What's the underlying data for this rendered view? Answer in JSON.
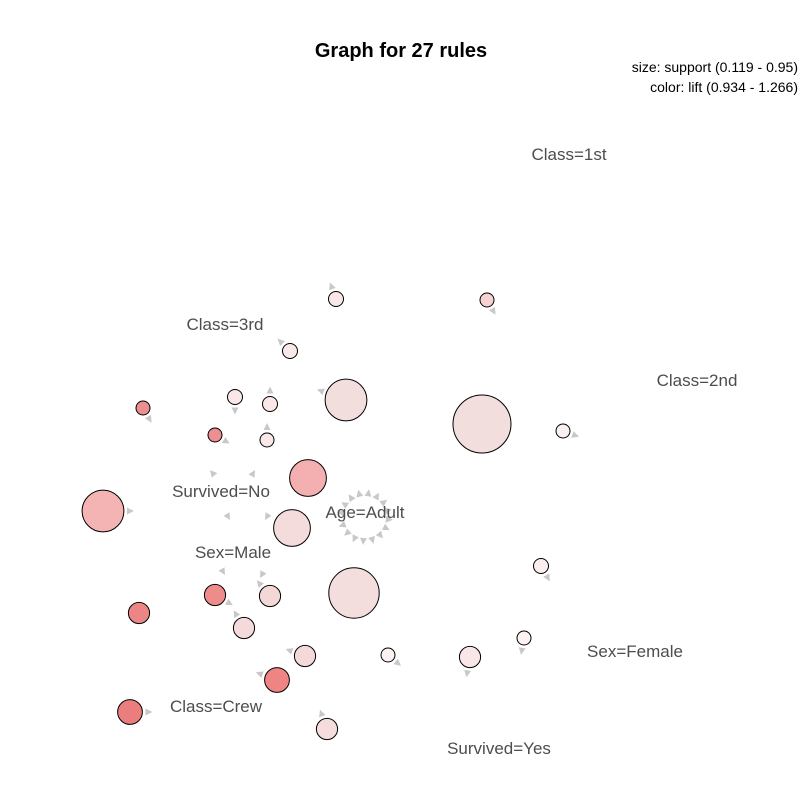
{
  "title": "Graph for 27 rules",
  "legend": {
    "size_text": "size: support (0.119 - 0.95)",
    "color_text": "color: lift (0.934 - 1.266)"
  },
  "items": [
    {
      "id": "class-1st",
      "label": "Class=1st"
    },
    {
      "id": "class-3rd",
      "label": "Class=3rd"
    },
    {
      "id": "class-2nd",
      "label": "Class=2nd"
    },
    {
      "id": "survived-no",
      "label": "Survived=No"
    },
    {
      "id": "age-adult",
      "label": "Age=Adult"
    },
    {
      "id": "sex-male",
      "label": "Sex=Male"
    },
    {
      "id": "sex-female",
      "label": "Sex=Female"
    },
    {
      "id": "class-crew",
      "label": "Class=Crew"
    },
    {
      "id": "survived-yes",
      "label": "Survived=Yes"
    }
  ],
  "rules": [
    {
      "id": 1,
      "support": 0.13,
      "lift": 1.0,
      "color": "#f9e6e6"
    },
    {
      "id": 2,
      "support": 0.119,
      "lift": 1.05,
      "color": "#f6d2d2"
    },
    {
      "id": 3,
      "support": 0.13,
      "lift": 1.0,
      "color": "#fae8e8"
    },
    {
      "id": 4,
      "support": 0.13,
      "lift": 1.0,
      "color": "#fae8e8"
    },
    {
      "id": 5,
      "support": 0.13,
      "lift": 1.0,
      "color": "#fae8e8"
    },
    {
      "id": 6,
      "support": 0.55,
      "lift": 1.0,
      "color": "#f3dede"
    },
    {
      "id": 7,
      "support": 0.95,
      "lift": 1.0,
      "color": "#f3dede"
    },
    {
      "id": 8,
      "support": 0.119,
      "lift": 1.0,
      "color": "#fbf0f0"
    },
    {
      "id": 9,
      "support": 0.119,
      "lift": 1.2,
      "color": "#ec8f8f"
    },
    {
      "id": 10,
      "support": 0.119,
      "lift": 1.2,
      "color": "#ec8f8f"
    },
    {
      "id": 11,
      "support": 0.119,
      "lift": 1.0,
      "color": "#fae8e8"
    },
    {
      "id": 12,
      "support": 0.45,
      "lift": 1.1,
      "color": "#f4b0b0"
    },
    {
      "id": 13,
      "support": 0.55,
      "lift": 1.1,
      "color": "#f4b4b4"
    },
    {
      "id": 14,
      "support": 0.45,
      "lift": 1.05,
      "color": "#f4dcdc"
    },
    {
      "id": 15,
      "support": 0.75,
      "lift": 1.0,
      "color": "#f3dddd"
    },
    {
      "id": 16,
      "support": 0.13,
      "lift": 1.0,
      "color": "#fbeeee"
    },
    {
      "id": 17,
      "support": 0.2,
      "lift": 1.25,
      "color": "#ec8585"
    },
    {
      "id": 18,
      "support": 0.2,
      "lift": 1.15,
      "color": "#ee8c8c"
    },
    {
      "id": 19,
      "support": 0.2,
      "lift": 1.05,
      "color": "#f4d8d8"
    },
    {
      "id": 20,
      "support": 0.2,
      "lift": 1.05,
      "color": "#f4dada"
    },
    {
      "id": 21,
      "support": 0.2,
      "lift": 1.05,
      "color": "#f3d9d9"
    },
    {
      "id": 22,
      "support": 0.119,
      "lift": 0.95,
      "color": "#fcf2f2"
    },
    {
      "id": 23,
      "support": 0.2,
      "lift": 1.0,
      "color": "#f9e6e6"
    },
    {
      "id": 24,
      "support": 0.119,
      "lift": 1.0,
      "color": "#fcf2f2"
    },
    {
      "id": 25,
      "support": 0.25,
      "lift": 1.15,
      "color": "#ef8484"
    },
    {
      "id": 26,
      "support": 0.25,
      "lift": 1.266,
      "color": "#ea7d7d"
    },
    {
      "id": 27,
      "support": 0.2,
      "lift": 1.0,
      "color": "#f6dcdc"
    }
  ]
}
